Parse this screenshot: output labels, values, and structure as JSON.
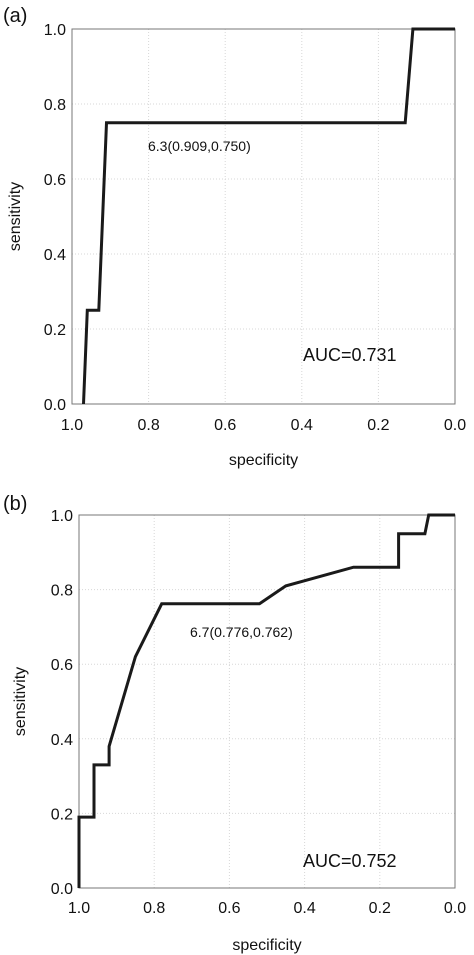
{
  "chart_data": [
    {
      "type": "line",
      "panel_label": "(a)",
      "xlabel": "specificity",
      "ylabel": "sensitivity",
      "x_reversed": true,
      "xlim": [
        1.0,
        0.0
      ],
      "ylim": [
        0.0,
        1.0
      ],
      "grid": true,
      "xticks": [
        "1.0",
        "0.8",
        "0.6",
        "0.4",
        "0.2",
        "0.0"
      ],
      "yticks": [
        "0.0",
        "0.2",
        "0.4",
        "0.6",
        "0.8",
        "1.0"
      ],
      "x": [
        0.97,
        0.96,
        0.93,
        0.91,
        0.13,
        0.11,
        0.0
      ],
      "y": [
        0.0,
        0.25,
        0.25,
        0.75,
        0.75,
        1.0,
        1.0
      ],
      "annotation": "6.3(0.909,0.750)",
      "auc_text": "AUC=0.731"
    },
    {
      "type": "line",
      "panel_label": "(b)",
      "xlabel": "specificity",
      "ylabel": "sensitivity",
      "x_reversed": true,
      "xlim": [
        1.0,
        0.0
      ],
      "ylim": [
        0.0,
        1.0
      ],
      "grid": true,
      "xticks": [
        "1.0",
        "0.8",
        "0.6",
        "0.4",
        "0.2",
        "0.0"
      ],
      "yticks": [
        "0.0",
        "0.2",
        "0.4",
        "0.6",
        "0.8",
        "1.0"
      ],
      "x": [
        1.0,
        1.0,
        0.96,
        0.96,
        0.92,
        0.92,
        0.85,
        0.78,
        0.52,
        0.45,
        0.27,
        0.15,
        0.15,
        0.08,
        0.07,
        0.0
      ],
      "y": [
        0.0,
        0.19,
        0.19,
        0.33,
        0.33,
        0.38,
        0.62,
        0.762,
        0.762,
        0.81,
        0.86,
        0.86,
        0.95,
        0.95,
        1.0,
        1.0
      ],
      "annotation": "6.7(0.776,0.762)",
      "auc_text": "AUC=0.752"
    }
  ]
}
